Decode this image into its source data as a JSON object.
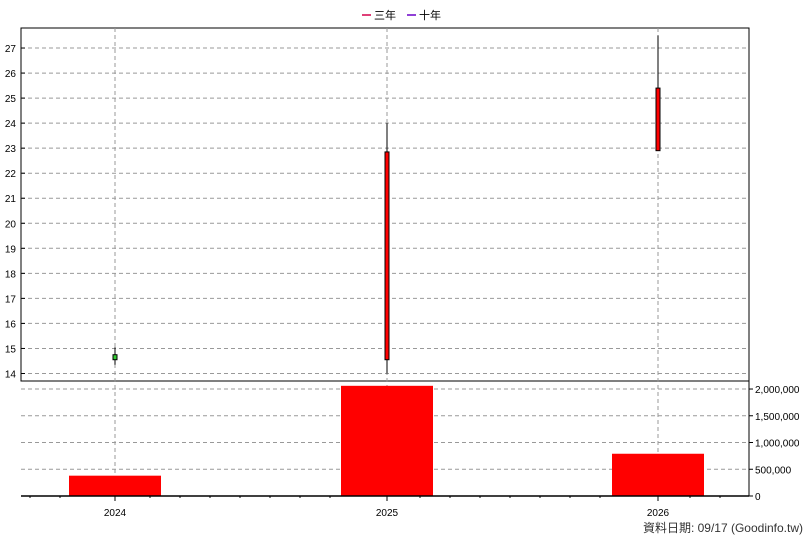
{
  "chart_data": {
    "type": "candlestick+bar",
    "legend": [
      {
        "label": "三年",
        "color": "#d4004a"
      },
      {
        "label": "十年",
        "color": "#6a00c8"
      }
    ],
    "categories": [
      "2024",
      "2025",
      "2026"
    ],
    "price": {
      "yticks": [
        14,
        15,
        16,
        17,
        18,
        19,
        20,
        21,
        22,
        23,
        24,
        25,
        26,
        27
      ],
      "ylim": [
        13.7,
        27.8
      ],
      "candles": [
        {
          "x": "2024",
          "open": 14.55,
          "close": 14.75,
          "high": 15.05,
          "low": 14.35,
          "color": "#33cc33"
        },
        {
          "x": "2025",
          "open": 14.55,
          "close": 22.85,
          "high": 24.0,
          "low": 14.0,
          "color": "#ff0000"
        },
        {
          "x": "2026",
          "open": 22.9,
          "close": 25.4,
          "high": 27.5,
          "low": 22.9,
          "color": "#ff0000"
        }
      ]
    },
    "volume": {
      "yticks": [
        0,
        500000,
        1000000,
        1500000,
        2000000
      ],
      "ytick_labels": [
        "0",
        "500,000",
        "1,000,000",
        "1,500,000",
        "2,000,000"
      ],
      "ylim": [
        0,
        2150000
      ],
      "bars": [
        {
          "x": "2024",
          "value": 380000,
          "color": "#ff0000"
        },
        {
          "x": "2025",
          "value": 2060000,
          "color": "#ff0000"
        },
        {
          "x": "2026",
          "value": 790000,
          "color": "#ff0000"
        }
      ]
    },
    "grid": true
  },
  "footer": "資料日期: 09/17  (Goodinfo.tw)"
}
